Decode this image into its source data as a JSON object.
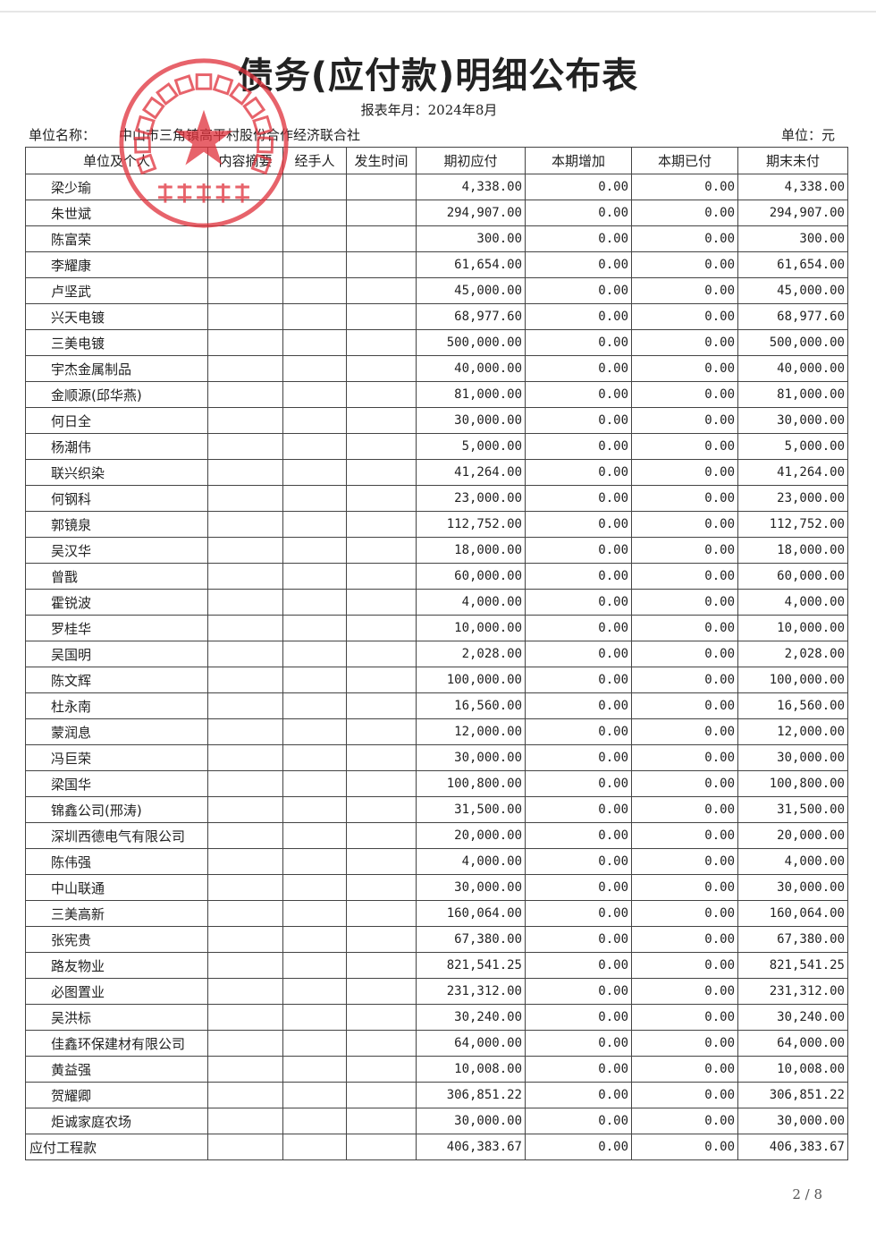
{
  "title": "债务(应付款)明细公布表",
  "period": "报表年月：2024年8月",
  "unit_name_label": "单位名称：",
  "unit_name": "中山市三角镇高平村股份合作经济联合社",
  "unit": "单位：元",
  "stamp_text": "中山市三角镇高平村股份合作经济联合社",
  "stamp_color": "#e0303a",
  "columns": [
    "单位及个人",
    "内容摘要",
    "经手人",
    "发生时间",
    "期初应付",
    "本期增加",
    "本期已付",
    "期末未付"
  ],
  "rows": [
    [
      "梁少瑜",
      "4,338.00",
      "0.00",
      "0.00",
      "4,338.00"
    ],
    [
      "朱世斌",
      "294,907.00",
      "0.00",
      "0.00",
      "294,907.00"
    ],
    [
      "陈富荣",
      "300.00",
      "0.00",
      "0.00",
      "300.00"
    ],
    [
      "李耀康",
      "61,654.00",
      "0.00",
      "0.00",
      "61,654.00"
    ],
    [
      "卢坚武",
      "45,000.00",
      "0.00",
      "0.00",
      "45,000.00"
    ],
    [
      "兴天电镀",
      "68,977.60",
      "0.00",
      "0.00",
      "68,977.60"
    ],
    [
      "三美电镀",
      "500,000.00",
      "0.00",
      "0.00",
      "500,000.00"
    ],
    [
      "宇杰金属制品",
      "40,000.00",
      "0.00",
      "0.00",
      "40,000.00"
    ],
    [
      "金顺源(邱华燕)",
      "81,000.00",
      "0.00",
      "0.00",
      "81,000.00"
    ],
    [
      "何日全",
      "30,000.00",
      "0.00",
      "0.00",
      "30,000.00"
    ],
    [
      "杨潮伟",
      "5,000.00",
      "0.00",
      "0.00",
      "5,000.00"
    ],
    [
      "联兴织染",
      "41,264.00",
      "0.00",
      "0.00",
      "41,264.00"
    ],
    [
      "何钢科",
      "23,000.00",
      "0.00",
      "0.00",
      "23,000.00"
    ],
    [
      "郭镜泉",
      "112,752.00",
      "0.00",
      "0.00",
      "112,752.00"
    ],
    [
      "吴汉华",
      "18,000.00",
      "0.00",
      "0.00",
      "18,000.00"
    ],
    [
      "曾戬",
      "60,000.00",
      "0.00",
      "0.00",
      "60,000.00"
    ],
    [
      "霍锐波",
      "4,000.00",
      "0.00",
      "0.00",
      "4,000.00"
    ],
    [
      "罗桂华",
      "10,000.00",
      "0.00",
      "0.00",
      "10,000.00"
    ],
    [
      "吴国明",
      "2,028.00",
      "0.00",
      "0.00",
      "2,028.00"
    ],
    [
      "陈文辉",
      "100,000.00",
      "0.00",
      "0.00",
      "100,000.00"
    ],
    [
      "杜永南",
      "16,560.00",
      "0.00",
      "0.00",
      "16,560.00"
    ],
    [
      "蒙润息",
      "12,000.00",
      "0.00",
      "0.00",
      "12,000.00"
    ],
    [
      "冯巨荣",
      "30,000.00",
      "0.00",
      "0.00",
      "30,000.00"
    ],
    [
      "梁国华",
      "100,800.00",
      "0.00",
      "0.00",
      "100,800.00"
    ],
    [
      "锦鑫公司(邢涛)",
      "31,500.00",
      "0.00",
      "0.00",
      "31,500.00"
    ],
    [
      "深圳西德电气有限公司",
      "20,000.00",
      "0.00",
      "0.00",
      "20,000.00"
    ],
    [
      "陈伟强",
      "4,000.00",
      "0.00",
      "0.00",
      "4,000.00"
    ],
    [
      "中山联通",
      "30,000.00",
      "0.00",
      "0.00",
      "30,000.00"
    ],
    [
      "三美高新",
      "160,064.00",
      "0.00",
      "0.00",
      "160,064.00"
    ],
    [
      "张宪贵",
      "67,380.00",
      "0.00",
      "0.00",
      "67,380.00"
    ],
    [
      "路友物业",
      "821,541.25",
      "0.00",
      "0.00",
      "821,541.25"
    ],
    [
      "必图置业",
      "231,312.00",
      "0.00",
      "0.00",
      "231,312.00"
    ],
    [
      "吴洪标",
      "30,240.00",
      "0.00",
      "0.00",
      "30,240.00"
    ],
    [
      "佳鑫环保建材有限公司",
      "64,000.00",
      "0.00",
      "0.00",
      "64,000.00"
    ],
    [
      "黄益强",
      "10,008.00",
      "0.00",
      "0.00",
      "10,008.00"
    ],
    [
      "贺耀卿",
      "306,851.22",
      "0.00",
      "0.00",
      "306,851.22"
    ],
    [
      "炬诚家庭农场",
      "30,000.00",
      "0.00",
      "0.00",
      "30,000.00"
    ]
  ],
  "total_row": [
    "应付工程款",
    "406,383.67",
    "0.00",
    "0.00",
    "406,383.67"
  ],
  "page_number": "2 / 8"
}
